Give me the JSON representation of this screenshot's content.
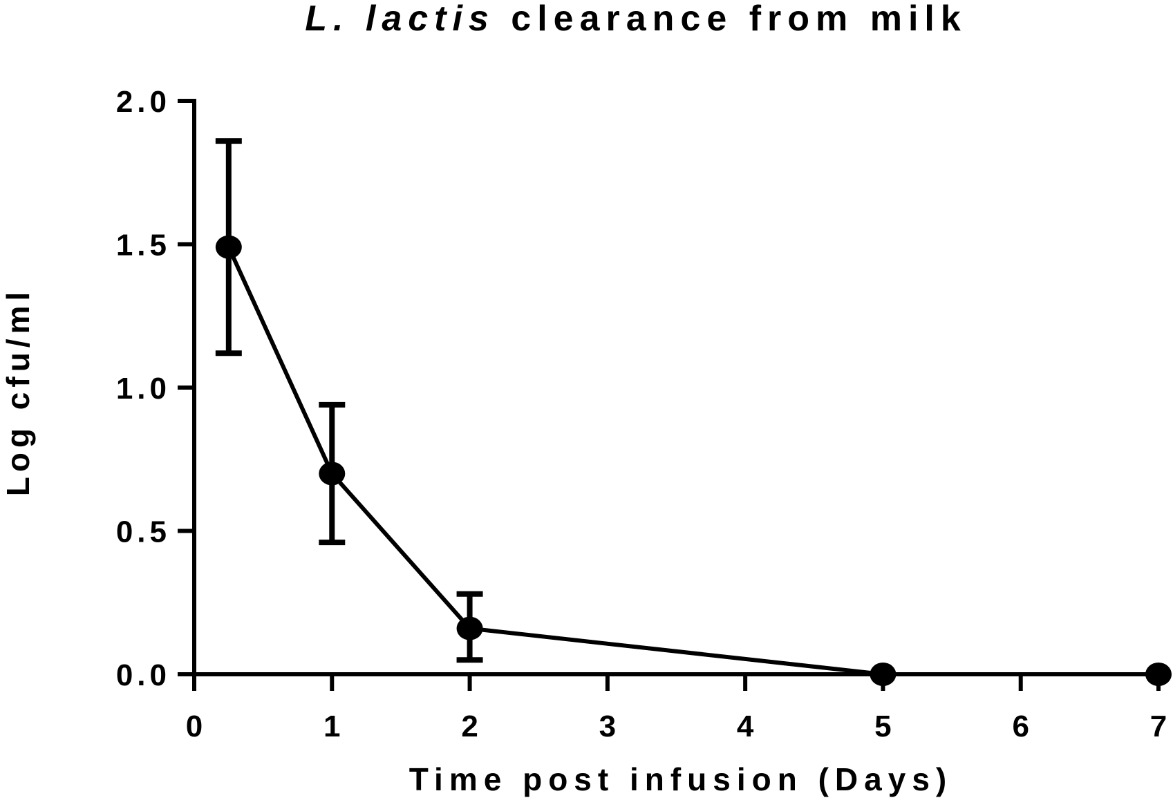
{
  "chart_data": {
    "type": "line",
    "title_italic": "L. lactis",
    "title_rest": " clearance from milk",
    "xlabel": "Time post infusion (Days)",
    "ylabel": "Log cfu/ml",
    "xlim": [
      0,
      7
    ],
    "ylim": [
      0,
      2
    ],
    "x_ticks": [
      0,
      1,
      2,
      3,
      4,
      5,
      6,
      7
    ],
    "x_tick_labels": [
      "0",
      "1",
      "2",
      "3",
      "4",
      "5",
      "6",
      "7"
    ],
    "y_ticks": [
      0,
      0.5,
      1.0,
      1.5,
      2.0
    ],
    "y_tick_labels": [
      "0.0",
      "0.5",
      "1.0",
      "1.5",
      "2.0"
    ],
    "grid": false,
    "legend": "none",
    "series": [
      {
        "x": [
          0.25,
          1,
          2,
          5,
          7
        ],
        "y": [
          1.49,
          0.7,
          0.16,
          0.0,
          0.0
        ],
        "error_low": [
          1.12,
          0.46,
          0.05,
          0.0,
          0.0
        ],
        "error_high": [
          1.86,
          0.94,
          0.28,
          0.0,
          0.0
        ],
        "color": "#000000"
      }
    ]
  }
}
